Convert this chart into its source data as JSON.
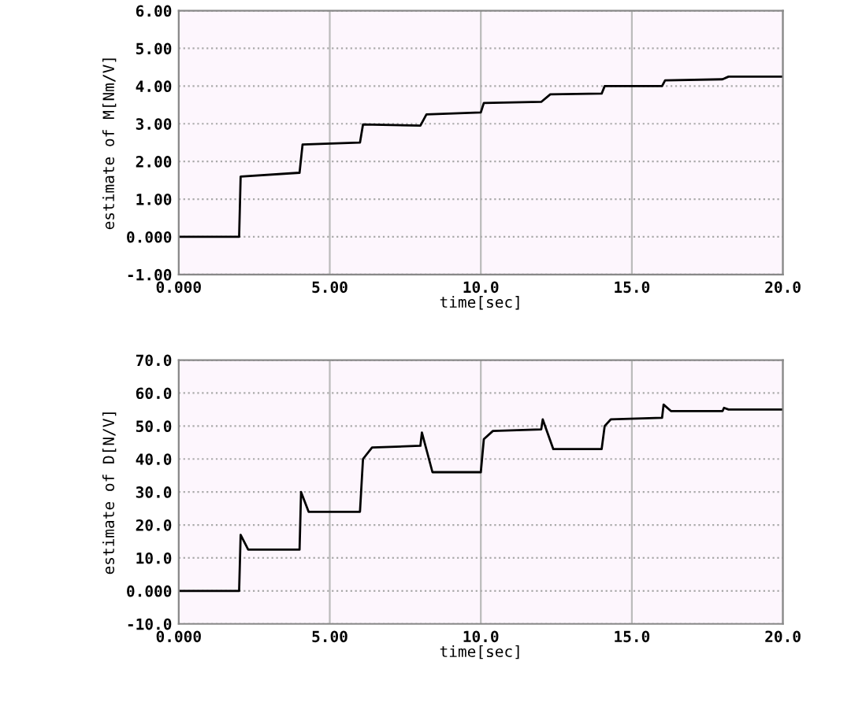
{
  "chart_data": [
    {
      "type": "line",
      "xlabel": "time[sec]",
      "ylabel": "estimate of M[Nm/V]",
      "xlim": [
        0,
        20
      ],
      "xticks": [
        {
          "value": 0,
          "label": "0.000"
        },
        {
          "value": 5,
          "label": "5.00"
        },
        {
          "value": 10,
          "label": "10.0"
        },
        {
          "value": 15,
          "label": "15.0"
        },
        {
          "value": 20,
          "label": "20.0"
        }
      ],
      "ylim": [
        -1,
        6
      ],
      "yticks": [
        {
          "value": -1,
          "label": "-1.00"
        },
        {
          "value": 0,
          "label": "0.000"
        },
        {
          "value": 1,
          "label": "1.00"
        },
        {
          "value": 2,
          "label": "2.00"
        },
        {
          "value": 3,
          "label": "3.00"
        },
        {
          "value": 4,
          "label": "4.00"
        },
        {
          "value": 5,
          "label": "5.00"
        },
        {
          "value": 6,
          "label": "6.00"
        }
      ],
      "grid": true,
      "marker": "none",
      "line_style": "solid",
      "series": [
        {
          "color": "#000000",
          "x": [
            0,
            2,
            2.05,
            4,
            4.1,
            6,
            6.1,
            8,
            8.2,
            10,
            10.1,
            12,
            12.3,
            14,
            14.1,
            16,
            16.1,
            18,
            18.2,
            20
          ],
          "values": [
            0,
            0,
            1.6,
            1.7,
            2.45,
            2.5,
            2.98,
            2.95,
            3.25,
            3.3,
            3.55,
            3.58,
            3.78,
            3.8,
            4.0,
            4.0,
            4.15,
            4.18,
            4.25,
            4.25
          ]
        }
      ]
    },
    {
      "type": "line",
      "xlabel": "time[sec]",
      "ylabel": "estimate of D[N/V]",
      "xlim": [
        0,
        20
      ],
      "xticks": [
        {
          "value": 0,
          "label": "0.000"
        },
        {
          "value": 5,
          "label": "5.00"
        },
        {
          "value": 10,
          "label": "10.0"
        },
        {
          "value": 15,
          "label": "15.0"
        },
        {
          "value": 20,
          "label": "20.0"
        }
      ],
      "ylim": [
        -10,
        70
      ],
      "yticks": [
        {
          "value": -10,
          "label": "-10.0"
        },
        {
          "value": 0,
          "label": "0.000"
        },
        {
          "value": 10,
          "label": "10.0"
        },
        {
          "value": 20,
          "label": "20.0"
        },
        {
          "value": 30,
          "label": "30.0"
        },
        {
          "value": 40,
          "label": "40.0"
        },
        {
          "value": 50,
          "label": "50.0"
        },
        {
          "value": 60,
          "label": "60.0"
        },
        {
          "value": 70,
          "label": "70.0"
        }
      ],
      "grid": true,
      "marker": "none",
      "line_style": "solid",
      "series": [
        {
          "color": "#000000",
          "x": [
            0,
            2,
            2.05,
            2.3,
            4,
            4.05,
            4.3,
            6,
            6.1,
            6.4,
            8,
            8.05,
            8.4,
            10,
            10.1,
            10.4,
            12,
            12.05,
            12.4,
            14,
            14.1,
            14.3,
            16,
            16.05,
            16.3,
            18,
            18.05,
            18.2,
            20
          ],
          "values": [
            0,
            0,
            17,
            12.5,
            12.5,
            30,
            24,
            24,
            40,
            43.5,
            44,
            48,
            36,
            36,
            46,
            48.5,
            49,
            52,
            43,
            43,
            50,
            52,
            52.5,
            56.5,
            54.5,
            54.5,
            55.5,
            55,
            55
          ]
        }
      ]
    }
  ]
}
